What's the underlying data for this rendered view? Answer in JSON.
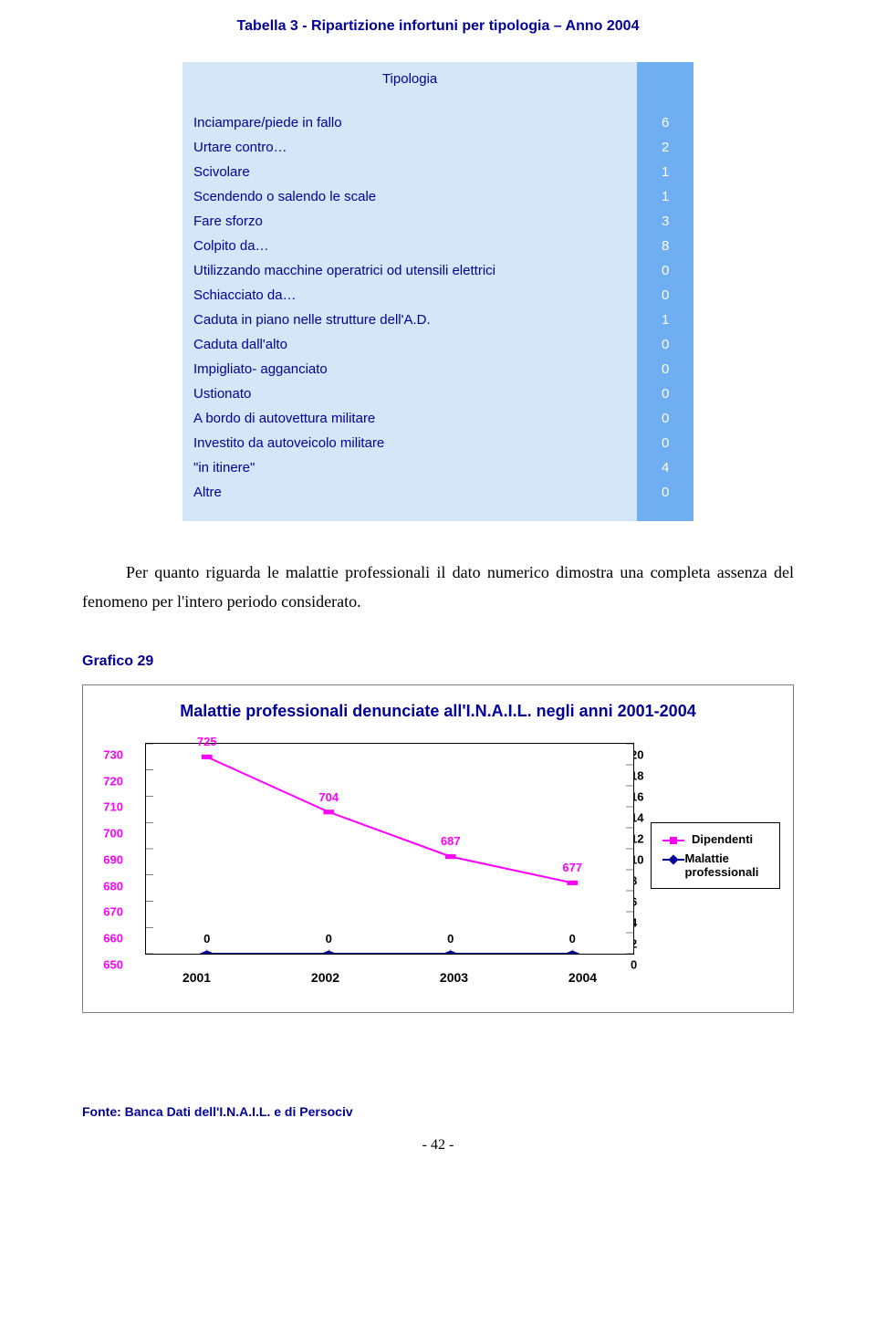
{
  "title": "Tabella 3 - Ripartizione infortuni per tipologia – Anno 2004",
  "table": {
    "header": "Tipologia",
    "rows": [
      {
        "label": "Inciampare/piede in fallo",
        "value": "6"
      },
      {
        "label": "Urtare contro…",
        "value": "2"
      },
      {
        "label": "Scivolare",
        "value": "1"
      },
      {
        "label": "Scendendo o salendo le scale",
        "value": "1"
      },
      {
        "label": "Fare sforzo",
        "value": "3"
      },
      {
        "label": "Colpito da…",
        "value": "8"
      },
      {
        "label": "Utilizzando macchine operatrici od utensili elettrici",
        "value": "0"
      },
      {
        "label": "Schiacciato da…",
        "value": "0"
      },
      {
        "label": "Caduta in piano nelle strutture dell'A.D.",
        "value": "1"
      },
      {
        "label": "Caduta dall'alto",
        "value": "0"
      },
      {
        "label": "Impigliato- agganciato",
        "value": "0"
      },
      {
        "label": "Ustionato",
        "value": "0"
      },
      {
        "label": "A bordo di autovettura militare",
        "value": "0"
      },
      {
        "label": "Investito da autoveicolo militare",
        "value": "0"
      },
      {
        "label": "\"in itinere\"",
        "value": "4"
      },
      {
        "label": "Altre",
        "value": "0"
      }
    ],
    "label_bg": "#d5e6f9",
    "value_bg": "#6faef0",
    "label_color": "#000099",
    "value_color": "#ffffff"
  },
  "paragraph": "Per quanto riguarda le malattie professionali il dato numerico dimostra una completa assenza del fenomeno per l'intero periodo considerato.",
  "grafico_label": "Grafico 29",
  "chart": {
    "title": "Malattie professionali denunciate all'I.N.A.I.L. negli anni 2001-2004",
    "type": "line",
    "x_categories": [
      "2001",
      "2002",
      "2003",
      "2004"
    ],
    "left_axis": {
      "min": 650,
      "max": 730,
      "step": 10,
      "color": "#ff00ff"
    },
    "right_axis": {
      "min": 0,
      "max": 20,
      "step": 2,
      "color": "#000000"
    },
    "series": [
      {
        "name": "Dipendenti",
        "axis": "left",
        "color": "#ff00ff",
        "marker": "square",
        "values": [
          725,
          704,
          687,
          677
        ],
        "labels": [
          "725",
          "704",
          "687",
          "677"
        ]
      },
      {
        "name": "Malattie professionali",
        "axis": "right",
        "color": "#000099",
        "marker": "diamond",
        "values": [
          0,
          0,
          0,
          0
        ],
        "labels": [
          "0",
          "0",
          "0",
          "0"
        ]
      }
    ],
    "plot_bg": "#ffffff",
    "border_color": "#808080",
    "line_width": 2,
    "marker_size": 7
  },
  "footer_note": "Fonte: Banca Dati dell'I.N.A.I.L. e di Persociv",
  "page_number": "- 42 -"
}
